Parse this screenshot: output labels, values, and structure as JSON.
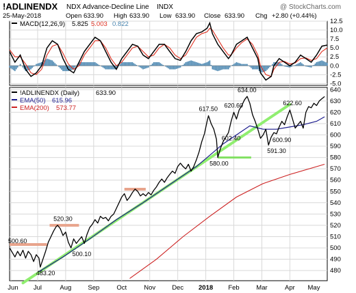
{
  "header": {
    "symbol": "!ADLINENDX",
    "name": "NDX Advance-Decline Line",
    "exchange": "INDX",
    "watermark": "@ StockCharts.com",
    "date": "25-May-2018",
    "open_label": "Open",
    "open": "633.90",
    "high_label": "High",
    "high": "633.90",
    "low_label": "Low",
    "low": "633.90",
    "close_label": "Close",
    "close": "633.90",
    "chg_label": "Chg",
    "chg": "+2.80 (+0.44%)"
  },
  "colors": {
    "price": "#000000",
    "ema50": "#1a1a8c",
    "ema200": "#cc2020",
    "macd": "#000000",
    "signal": "#e03020",
    "hist": "#4a86b0",
    "trend": "#90ee70",
    "support": "#e8a48c",
    "support_green": "#80e060",
    "grid": "#d8d8d8"
  },
  "chart_data": [
    {
      "type": "line",
      "panel": "MACD",
      "legend": {
        "name": "MACD(12,26,9)",
        "macd": "5.825",
        "signal": "5.003",
        "hist": "0.822"
      },
      "y_ticks": [
        "12.5",
        "10.0",
        "7.5",
        "5.0",
        "2.5",
        "0.0",
        "-2.5",
        "-5.0"
      ],
      "ylim": [
        -5.5,
        12.5
      ],
      "macd": [
        [
          0,
          4
        ],
        [
          4,
          1
        ],
        [
          8,
          3
        ],
        [
          12,
          -1
        ],
        [
          16,
          -3
        ],
        [
          20,
          -2
        ],
        [
          24,
          0
        ],
        [
          28,
          5
        ],
        [
          32,
          7
        ],
        [
          36,
          6
        ],
        [
          40,
          2
        ],
        [
          44,
          -1
        ],
        [
          48,
          -2
        ],
        [
          52,
          1
        ],
        [
          56,
          4
        ],
        [
          60,
          6
        ],
        [
          64,
          8
        ],
        [
          68,
          7
        ],
        [
          72,
          4
        ],
        [
          76,
          1
        ],
        [
          80,
          -1
        ],
        [
          84,
          2
        ],
        [
          88,
          4
        ],
        [
          92,
          6
        ],
        [
          96,
          5.5
        ],
        [
          100,
          3
        ],
        [
          104,
          2
        ],
        [
          108,
          4
        ],
        [
          112,
          6
        ],
        [
          116,
          6
        ],
        [
          120,
          4
        ],
        [
          124,
          2
        ],
        [
          128,
          1.5
        ],
        [
          132,
          4
        ],
        [
          136,
          7
        ],
        [
          140,
          9
        ],
        [
          144,
          9.5
        ],
        [
          148,
          10.5
        ],
        [
          150,
          12
        ],
        [
          152,
          9
        ],
        [
          156,
          6
        ],
        [
          160,
          4
        ],
        [
          164,
          2
        ],
        [
          166,
          3
        ],
        [
          170,
          6
        ],
        [
          174,
          7
        ],
        [
          178,
          8
        ],
        [
          182,
          5
        ],
        [
          186,
          2
        ],
        [
          188,
          -2
        ],
        [
          192,
          -4
        ],
        [
          196,
          -3
        ],
        [
          198,
          0
        ],
        [
          202,
          2
        ],
        [
          206,
          1
        ],
        [
          210,
          0
        ],
        [
          214,
          1
        ],
        [
          218,
          3
        ],
        [
          222,
          2
        ],
        [
          226,
          1
        ],
        [
          230,
          3
        ],
        [
          234,
          5.5
        ],
        [
          238,
          5.8
        ]
      ],
      "signal": [
        [
          0,
          4.5
        ],
        [
          4,
          2.5
        ],
        [
          8,
          2.5
        ],
        [
          12,
          0.5
        ],
        [
          16,
          -2
        ],
        [
          20,
          -2.5
        ],
        [
          24,
          -1
        ],
        [
          28,
          3
        ],
        [
          32,
          5.5
        ],
        [
          36,
          6
        ],
        [
          40,
          3.5
        ],
        [
          44,
          0.5
        ],
        [
          48,
          -1
        ],
        [
          52,
          0
        ],
        [
          56,
          3
        ],
        [
          60,
          5
        ],
        [
          64,
          7
        ],
        [
          68,
          7
        ],
        [
          72,
          5
        ],
        [
          76,
          2
        ],
        [
          80,
          0
        ],
        [
          84,
          1
        ],
        [
          88,
          3
        ],
        [
          92,
          5
        ],
        [
          96,
          5.5
        ],
        [
          100,
          4
        ],
        [
          104,
          2.5
        ],
        [
          108,
          3
        ],
        [
          112,
          5
        ],
        [
          116,
          6
        ],
        [
          120,
          5
        ],
        [
          124,
          3
        ],
        [
          128,
          2
        ],
        [
          132,
          3
        ],
        [
          136,
          5.5
        ],
        [
          140,
          8
        ],
        [
          144,
          9
        ],
        [
          148,
          9.5
        ],
        [
          150,
          10.5
        ],
        [
          152,
          10
        ],
        [
          156,
          7.5
        ],
        [
          160,
          5
        ],
        [
          164,
          3
        ],
        [
          166,
          3
        ],
        [
          170,
          5
        ],
        [
          174,
          6.5
        ],
        [
          178,
          7.5
        ],
        [
          182,
          6
        ],
        [
          186,
          3
        ],
        [
          188,
          0
        ],
        [
          192,
          -2.5
        ],
        [
          196,
          -3
        ],
        [
          198,
          -1
        ],
        [
          202,
          1
        ],
        [
          206,
          1.2
        ],
        [
          210,
          0.5
        ],
        [
          214,
          0.8
        ],
        [
          218,
          2
        ],
        [
          222,
          2.2
        ],
        [
          226,
          1.5
        ],
        [
          230,
          2
        ],
        [
          234,
          4
        ],
        [
          238,
          5
        ]
      ]
    },
    {
      "type": "line",
      "panel": "Price",
      "legend": [
        {
          "name": "!ADLINENDX (Daily)",
          "value": "633.90"
        },
        {
          "name": "EMA(50)",
          "value": "615.96"
        },
        {
          "name": "EMA(200)",
          "value": "573.77"
        }
      ],
      "y_ticks": [
        "640",
        "630",
        "620",
        "610",
        "600",
        "590",
        "580",
        "570",
        "560",
        "550",
        "540",
        "530",
        "520",
        "510",
        "500",
        "490",
        "480"
      ],
      "ylim": [
        471,
        642
      ],
      "x_labels": [
        "Jun",
        "Jul",
        "Aug",
        "Sep",
        "Oct",
        "Nov",
        "Dec",
        "2018",
        "Feb",
        "Mar",
        "Apr",
        "May"
      ],
      "annotations": [
        {
          "label": "500.60",
          "x": 2,
          "y": 500.6
        },
        {
          "label": "483.20",
          "x": 23,
          "y": 483.2
        },
        {
          "label": "520.30",
          "x": 36,
          "y": 520.3
        },
        {
          "label": "500.10",
          "x": 46,
          "y": 500.1
        },
        {
          "label": "617.50",
          "x": 149,
          "y": 617.5
        },
        {
          "label": "620.60",
          "x": 168,
          "y": 620.6
        },
        {
          "label": "634.00",
          "x": 178,
          "y": 634.0
        },
        {
          "label": "602.40",
          "x": 164,
          "y": 602.4
        },
        {
          "label": "580.00",
          "x": 156,
          "y": 580.0
        },
        {
          "label": "591.30",
          "x": 194,
          "y": 591.3
        },
        {
          "label": "622.60",
          "x": 210,
          "y": 622.6
        },
        {
          "label": "600.90",
          "x": 201,
          "y": 600.9
        }
      ],
      "price": [
        [
          0,
          500
        ],
        [
          2,
          496
        ],
        [
          4,
          492
        ],
        [
          6,
          497
        ],
        [
          8,
          493
        ],
        [
          10,
          498
        ],
        [
          12,
          491
        ],
        [
          14,
          497
        ],
        [
          16,
          494
        ],
        [
          18,
          488
        ],
        [
          20,
          494
        ],
        [
          22,
          491
        ],
        [
          23,
          483
        ],
        [
          25,
          490
        ],
        [
          27,
          497
        ],
        [
          29,
          505
        ],
        [
          31,
          510
        ],
        [
          33,
          515
        ],
        [
          35,
          519
        ],
        [
          36,
          520
        ],
        [
          38,
          517
        ],
        [
          40,
          511
        ],
        [
          42,
          514
        ],
        [
          44,
          505
        ],
        [
          46,
          500
        ],
        [
          48,
          508
        ],
        [
          50,
          504
        ],
        [
          52,
          507
        ],
        [
          54,
          510
        ],
        [
          56,
          504
        ],
        [
          58,
          512
        ],
        [
          60,
          518
        ],
        [
          62,
          521
        ],
        [
          64,
          525
        ],
        [
          66,
          522
        ],
        [
          68,
          528
        ],
        [
          70,
          526
        ],
        [
          72,
          527
        ],
        [
          74,
          524
        ],
        [
          76,
          528
        ],
        [
          78,
          530
        ],
        [
          80,
          535
        ],
        [
          82,
          540
        ],
        [
          84,
          545
        ],
        [
          86,
          548
        ],
        [
          88,
          542
        ],
        [
          90,
          545
        ],
        [
          92,
          549
        ],
        [
          94,
          552
        ],
        [
          96,
          550
        ],
        [
          98,
          546
        ],
        [
          100,
          548
        ],
        [
          102,
          546
        ],
        [
          104,
          549
        ],
        [
          106,
          547
        ],
        [
          108,
          551
        ],
        [
          110,
          554
        ],
        [
          112,
          558
        ],
        [
          114,
          561
        ],
        [
          116,
          558
        ],
        [
          118,
          562
        ],
        [
          120,
          565
        ],
        [
          122,
          568
        ],
        [
          124,
          566
        ],
        [
          126,
          572
        ],
        [
          128,
          575
        ],
        [
          130,
          572
        ],
        [
          132,
          570
        ],
        [
          134,
          574
        ],
        [
          136,
          568
        ],
        [
          138,
          572
        ],
        [
          140,
          578
        ],
        [
          142,
          585
        ],
        [
          144,
          594
        ],
        [
          146,
          601
        ],
        [
          148,
          612
        ],
        [
          149,
          617
        ],
        [
          151,
          610
        ],
        [
          153,
          605
        ],
        [
          155,
          596
        ],
        [
          156,
          580
        ],
        [
          158,
          588
        ],
        [
          160,
          594
        ],
        [
          162,
          598
        ],
        [
          164,
          602
        ],
        [
          166,
          612
        ],
        [
          168,
          620
        ],
        [
          170,
          614
        ],
        [
          172,
          622
        ],
        [
          174,
          626
        ],
        [
          176,
          631
        ],
        [
          178,
          634
        ],
        [
          180,
          628
        ],
        [
          182,
          618
        ],
        [
          184,
          612
        ],
        [
          186,
          605
        ],
        [
          188,
          597
        ],
        [
          190,
          600
        ],
        [
          192,
          605
        ],
        [
          194,
          591
        ],
        [
          196,
          598
        ],
        [
          198,
          602
        ],
        [
          200,
          601
        ],
        [
          202,
          607
        ],
        [
          204,
          612
        ],
        [
          206,
          609
        ],
        [
          208,
          616
        ],
        [
          210,
          622
        ],
        [
          212,
          614
        ],
        [
          214,
          606
        ],
        [
          216,
          609
        ],
        [
          218,
          612
        ],
        [
          220,
          606
        ],
        [
          222,
          620
        ],
        [
          224,
          625
        ],
        [
          226,
          624
        ],
        [
          228,
          628
        ],
        [
          230,
          626
        ],
        [
          232,
          630
        ],
        [
          234,
          632
        ],
        [
          236,
          633.9
        ]
      ],
      "ema50": [
        [
          22,
          479
        ],
        [
          40,
          492
        ],
        [
          60,
          508
        ],
        [
          80,
          525
        ],
        [
          100,
          540
        ],
        [
          120,
          556
        ],
        [
          140,
          572
        ],
        [
          150,
          582
        ],
        [
          160,
          592
        ],
        [
          170,
          600
        ],
        [
          180,
          608
        ],
        [
          190,
          605
        ],
        [
          200,
          605
        ],
        [
          210,
          607
        ],
        [
          220,
          609
        ],
        [
          230,
          612
        ],
        [
          236,
          616
        ]
      ],
      "ema200": [
        [
          90,
          473
        ],
        [
          110,
          490
        ],
        [
          130,
          510
        ],
        [
          150,
          528
        ],
        [
          170,
          545
        ],
        [
          190,
          557
        ],
        [
          210,
          565
        ],
        [
          236,
          574
        ]
      ],
      "trendline": [
        [
          10,
          469
        ],
        [
          210,
          627
        ]
      ],
      "support_lines": [
        {
          "x": [
            0,
            28
          ],
          "y": 503
        },
        {
          "x": [
            30,
            52
          ],
          "y": 520
        },
        {
          "x": [
            86,
            102
          ],
          "y": 552
        }
      ],
      "green_support": {
        "x": [
          156,
          181
        ],
        "y": 580
      }
    }
  ]
}
